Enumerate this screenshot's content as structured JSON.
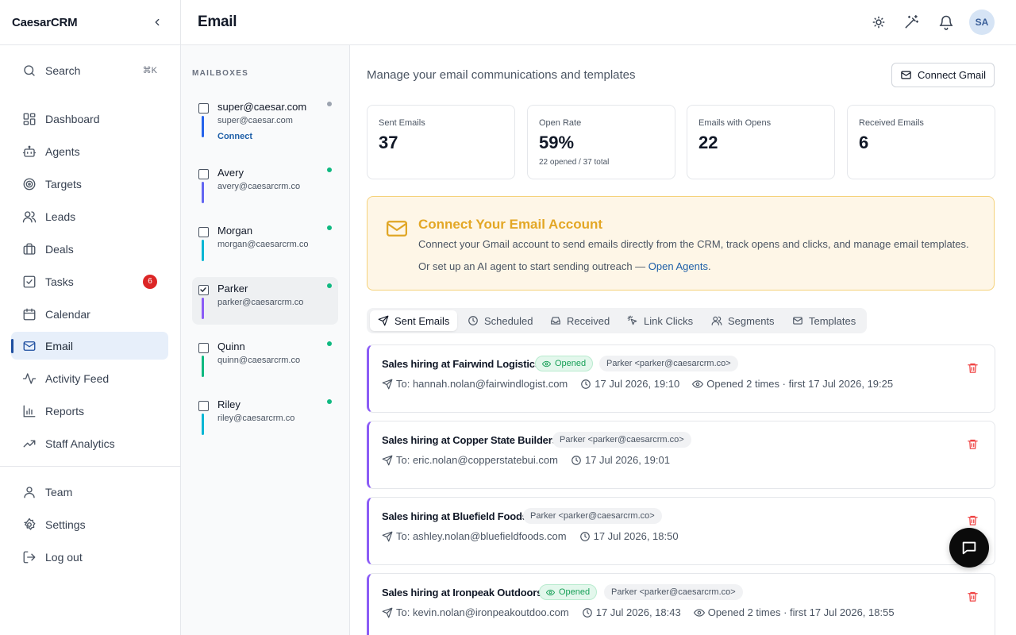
{
  "app": {
    "brand": "CaesarCRM"
  },
  "sidebar": {
    "search": {
      "label": "Search",
      "shortcut": "⌘K"
    },
    "items": [
      {
        "label": "Dashboard",
        "icon": "dashboard-icon"
      },
      {
        "label": "Agents",
        "icon": "bot-icon"
      },
      {
        "label": "Targets",
        "icon": "target-icon"
      },
      {
        "label": "Leads",
        "icon": "users-icon"
      },
      {
        "label": "Deals",
        "icon": "briefcase-icon"
      },
      {
        "label": "Tasks",
        "icon": "check-square-icon",
        "badge": "6"
      },
      {
        "label": "Calendar",
        "icon": "calendar-icon"
      },
      {
        "label": "Email",
        "icon": "mail-icon",
        "active": true
      },
      {
        "label": "Activity Feed",
        "icon": "activity-icon"
      },
      {
        "label": "Reports",
        "icon": "bar-chart-icon"
      },
      {
        "label": "Staff Analytics",
        "icon": "trending-up-icon"
      }
    ],
    "bottom_items": [
      {
        "label": "Team",
        "icon": "user-icon"
      },
      {
        "label": "Settings",
        "icon": "gear-icon"
      },
      {
        "label": "Log out",
        "icon": "logout-icon"
      }
    ]
  },
  "header": {
    "title": "Email",
    "avatar_initials": "SA"
  },
  "mailboxes": {
    "heading": "MAILBOXES",
    "items": [
      {
        "name": "super@caesar.com",
        "email": "super@caesar.com",
        "action": "Connect",
        "bar_color": "#2563eb",
        "dot_color": "#9ca3af",
        "checked": false
      },
      {
        "name": "Avery",
        "email": "avery@caesarcrm.co",
        "bar_color": "#6366f1",
        "dot_color": "#10b981",
        "checked": false
      },
      {
        "name": "Morgan",
        "email": "morgan@caesarcrm.co",
        "bar_color": "#06b6d4",
        "dot_color": "#10b981",
        "checked": false
      },
      {
        "name": "Parker",
        "email": "parker@caesarcrm.co",
        "bar_color": "#8b5cf6",
        "dot_color": "#10b981",
        "checked": true,
        "selected": true
      },
      {
        "name": "Quinn",
        "email": "quinn@caesarcrm.co",
        "bar_color": "#10b981",
        "dot_color": "#10b981",
        "checked": false
      },
      {
        "name": "Riley",
        "email": "riley@caesarcrm.co",
        "bar_color": "#06b6d4",
        "dot_color": "#10b981",
        "checked": false
      }
    ]
  },
  "main": {
    "subtitle": "Manage your email communications and templates",
    "connect_gmail_label": "Connect Gmail",
    "stats": [
      {
        "label": "Sent Emails",
        "value": "37",
        "sub": ""
      },
      {
        "label": "Open Rate",
        "value": "59%",
        "sub": "22 opened / 37 total"
      },
      {
        "label": "Emails with Opens",
        "value": "22",
        "sub": ""
      },
      {
        "label": "Received Emails",
        "value": "6",
        "sub": ""
      }
    ],
    "alert": {
      "title": "Connect Your Email Account",
      "text": "Connect your Gmail account to send emails directly from the CRM, track opens and clicks, and manage email templates.",
      "text2_prefix": "Or set up an AI agent to start sending outreach — ",
      "link_label": "Open Agents",
      "text2_suffix": "."
    },
    "tabs": [
      {
        "label": "Sent Emails",
        "icon": "send-icon",
        "active": true
      },
      {
        "label": "Scheduled",
        "icon": "clock-icon"
      },
      {
        "label": "Received",
        "icon": "inbox-icon"
      },
      {
        "label": "Link Clicks",
        "icon": "pointer-click-icon"
      },
      {
        "label": "Segments",
        "icon": "users-icon"
      },
      {
        "label": "Templates",
        "icon": "mail-icon"
      }
    ],
    "emails": [
      {
        "subject": "Sales hiring at Fairwind Logistics",
        "status": "Opened",
        "from": "Parker <parker@caesarcrm.co>",
        "to": "To: hannah.nolan@fairwindlogist.com",
        "time": "17 Jul 2026, 19:10",
        "opens": "Opened 2 times · first 17 Jul 2026, 19:25"
      },
      {
        "subject": "Sales hiring at Copper State Builders",
        "status": "",
        "from": "Parker <parker@caesarcrm.co>",
        "to": "To: eric.nolan@copperstatebui.com",
        "time": "17 Jul 2026, 19:01",
        "opens": ""
      },
      {
        "subject": "Sales hiring at Bluefield Foods",
        "status": "",
        "from": "Parker <parker@caesarcrm.co>",
        "to": "To: ashley.nolan@bluefieldfoods.com",
        "time": "17 Jul 2026, 18:50",
        "opens": ""
      },
      {
        "subject": "Sales hiring at Ironpeak Outdoors",
        "status": "Opened",
        "from": "Parker <parker@caesarcrm.co>",
        "to": "To: kevin.nolan@ironpeakoutdoo.com",
        "time": "17 Jul 2026, 18:43",
        "opens": "Opened 2 times · first 17 Jul 2026, 18:55"
      }
    ]
  },
  "colors": {
    "accent": "#1e4fa0",
    "active_bg": "#e7effa",
    "alert_bg": "#fef6e7",
    "alert_title": "#e3a726",
    "email_accent": "#8b5cf6",
    "opened_green": "#18a058",
    "danger": "#ef4444"
  }
}
